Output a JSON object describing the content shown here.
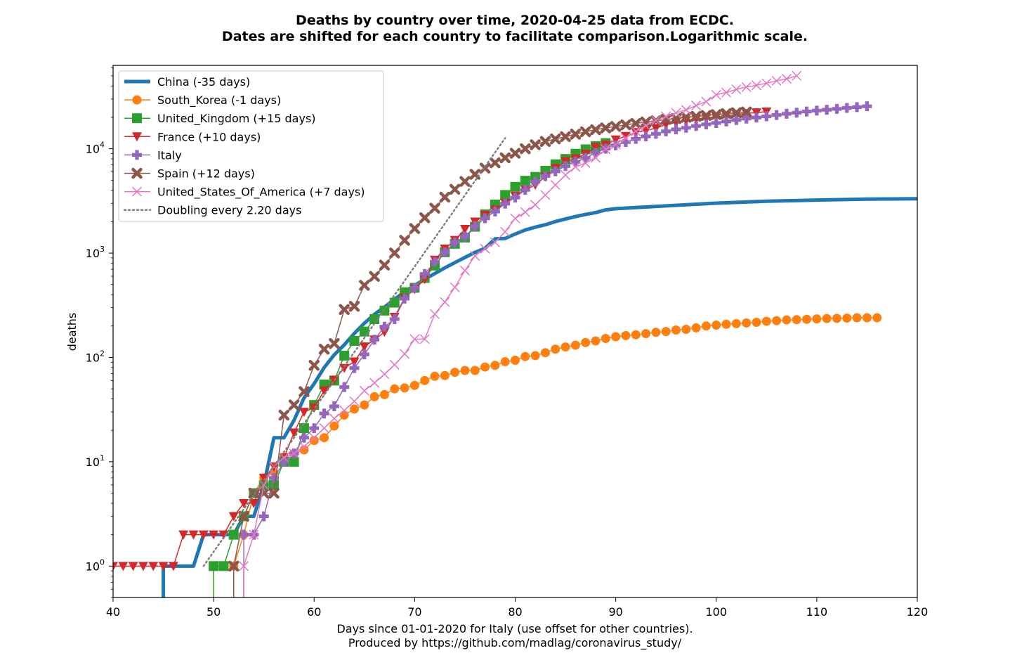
{
  "chart_data": {
    "type": "line",
    "title": [
      "Deaths by country over time, 2020-04-25 data from ECDC.",
      "Dates are shifted for each country to facilitate comparison.Logarithmic scale."
    ],
    "xlabel": [
      "Days since 01-01-2020 for Italy (use offset for other countries).",
      "Produced by https://github.com/madlag/coronavirus_study/"
    ],
    "ylabel": "deaths",
    "xlim": [
      40,
      120
    ],
    "ylim": [
      0.5,
      63000
    ],
    "yscale": "log",
    "x_ticks": [
      40,
      50,
      60,
      70,
      80,
      90,
      100,
      110,
      120
    ],
    "y_ticks": [
      {
        "value": 1,
        "base": "10",
        "exp": "0"
      },
      {
        "value": 10,
        "base": "10",
        "exp": "1"
      },
      {
        "value": 100,
        "base": "10",
        "exp": "2"
      },
      {
        "value": 1000,
        "base": "10",
        "exp": "3"
      },
      {
        "value": 10000,
        "base": "10",
        "exp": "4"
      }
    ],
    "legend_position": "top-left",
    "grid": false,
    "series": [
      {
        "name": "China (-35 days)",
        "color": "#1f77b4",
        "marker": "none",
        "line_width": 5,
        "x": [
          45,
          45,
          46,
          47,
          48,
          49,
          50,
          51,
          52,
          53,
          54,
          55,
          56,
          57,
          58,
          59,
          60,
          61,
          62,
          63,
          64,
          65,
          66,
          67,
          68,
          69,
          70,
          71,
          72,
          73,
          74,
          75,
          76,
          77,
          78,
          79,
          80,
          81,
          82,
          83,
          84,
          85,
          86,
          87,
          88,
          89,
          90,
          95,
          100,
          105,
          110,
          115,
          120
        ],
        "y": [
          0.5,
          1,
          1,
          1,
          1,
          2,
          2,
          2,
          2,
          3,
          3,
          6,
          17,
          17,
          25,
          41,
          56,
          80,
          106,
          132,
          170,
          213,
          259,
          304,
          361,
          425,
          490,
          562,
          636,
          722,
          811,
          908,
          1016,
          1113,
          1370,
          1381,
          1524,
          1666,
          1772,
          1870,
          2006,
          2121,
          2239,
          2348,
          2445,
          2595,
          2665,
          2835,
          3010,
          3140,
          3220,
          3290,
          3320
        ]
      },
      {
        "name": "South_Korea (-1 days)",
        "color": "#ff7f0e",
        "marker": "circle",
        "line_width": 1.5,
        "x": [
          52,
          52,
          53,
          54,
          55,
          56,
          57,
          58,
          59,
          60,
          61,
          62,
          63,
          64,
          65,
          66,
          67,
          68,
          69,
          70,
          71,
          72,
          73,
          74,
          75,
          76,
          77,
          78,
          79,
          80,
          81,
          82,
          83,
          84,
          85,
          86,
          87,
          88,
          89,
          90,
          91,
          92,
          93,
          94,
          95,
          96,
          97,
          98,
          99,
          100,
          101,
          102,
          103,
          104,
          105,
          106,
          107,
          108,
          109,
          110,
          111,
          112,
          113,
          114,
          115,
          116
        ],
        "y": [
          0.5,
          1,
          2,
          5,
          7,
          8,
          11,
          12,
          13,
          16,
          17,
          22,
          28,
          32,
          35,
          42,
          44,
          50,
          51,
          54,
          60,
          66,
          67,
          72,
          75,
          75,
          81,
          84,
          91,
          94,
          102,
          104,
          111,
          120,
          126,
          131,
          139,
          144,
          152,
          158,
          162,
          165,
          169,
          174,
          177,
          183,
          186,
          192,
          200,
          204,
          208,
          211,
          214,
          217,
          222,
          225,
          229,
          230,
          232,
          234,
          236,
          237,
          238,
          240,
          240,
          240
        ]
      },
      {
        "name": "United_Kingdom (+15 days)",
        "color": "#2ca02c",
        "marker": "square",
        "line_width": 1.5,
        "x": [
          50,
          50,
          51,
          52,
          53,
          54,
          55,
          56,
          57,
          58,
          59,
          60,
          61,
          62,
          63,
          64,
          65,
          66,
          67,
          68,
          69,
          70,
          71,
          72,
          73,
          74,
          75,
          76,
          77,
          78,
          79,
          80,
          81,
          82,
          83,
          84,
          85,
          86,
          87,
          88,
          89
        ],
        "y": [
          0.5,
          1,
          1,
          2,
          3,
          5,
          6,
          6,
          10,
          10,
          21,
          35,
          55,
          60,
          104,
          144,
          177,
          233,
          281,
          335,
          422,
          465,
          578,
          759,
          1019,
          1228,
          1408,
          1789,
          2352,
          2921,
          3605,
          4313,
          4934,
          5373,
          6159,
          7097,
          7978,
          8958,
          9875,
          10612,
          11329
        ]
      },
      {
        "name": "France (+10 days)",
        "color": "#d62728",
        "marker": "triangle-down",
        "line_width": 1.5,
        "x": [
          40,
          41,
          42,
          43,
          44,
          45,
          46,
          47,
          48,
          49,
          50,
          51,
          52,
          53,
          54,
          55,
          56,
          57,
          58,
          59,
          60,
          61,
          62,
          63,
          64,
          65,
          66,
          67,
          68,
          69,
          70,
          71,
          72,
          73,
          74,
          75,
          76,
          77,
          78,
          79,
          80,
          81,
          82,
          83,
          84,
          85,
          86,
          87,
          88,
          89,
          90,
          91,
          92,
          93,
          94,
          95,
          96,
          97,
          98,
          99,
          100,
          101,
          102,
          103,
          104,
          105
        ],
        "y": [
          1,
          1,
          1,
          1,
          1,
          1,
          1,
          2,
          2,
          2,
          2,
          2,
          3,
          4,
          4,
          7,
          9,
          11,
          19,
          30,
          33,
          48,
          61,
          79,
          91,
          127,
          148,
          175,
          244,
          372,
          450,
          562,
          860,
          1100,
          1331,
          1696,
          1995,
          2314,
          2606,
          3024,
          3523,
          4032,
          4503,
          5387,
          6507,
          7560,
          8078,
          8911,
          10328,
          10869,
          12210,
          13197,
          14393,
          14967,
          15712,
          17148,
          17901,
          18661,
          19323,
          19718,
          20265,
          20796,
          21340,
          21856,
          22245,
          22614
        ]
      },
      {
        "name": "Italy",
        "color": "#9467bd",
        "marker": "plus",
        "line_width": 1.5,
        "x": [
          53,
          53,
          54,
          55,
          56,
          57,
          58,
          59,
          60,
          61,
          62,
          63,
          64,
          65,
          66,
          67,
          68,
          69,
          70,
          71,
          72,
          73,
          74,
          75,
          76,
          77,
          78,
          79,
          80,
          81,
          82,
          83,
          84,
          85,
          86,
          87,
          88,
          89,
          90,
          91,
          92,
          93,
          94,
          95,
          96,
          97,
          98,
          99,
          100,
          101,
          102,
          103,
          104,
          105,
          106,
          107,
          108,
          109,
          110,
          111,
          112,
          113,
          114,
          115
        ],
        "y": [
          0.5,
          2,
          2,
          3,
          7,
          10,
          12,
          17,
          21,
          29,
          34,
          52,
          79,
          107,
          148,
          197,
          233,
          366,
          463,
          631,
          827,
          1016,
          1266,
          1441,
          1809,
          2158,
          2503,
          2978,
          3405,
          4032,
          4825,
          5476,
          6077,
          6820,
          7503,
          8165,
          9134,
          10023,
          10779,
          11591,
          12428,
          13155,
          13915,
          14681,
          15362,
          15887,
          16523,
          17127,
          17669,
          18279,
          18849,
          19468,
          19899,
          20465,
          21067,
          21645,
          22170,
          22745,
          23227,
          23660,
          24114,
          24648,
          25085,
          25549
        ]
      },
      {
        "name": "Spain (+12 days)",
        "color": "#8c564b",
        "marker": "x-thick",
        "line_width": 1.5,
        "x": [
          52,
          52,
          53,
          54,
          55,
          56,
          57,
          58,
          59,
          60,
          61,
          62,
          63,
          64,
          65,
          66,
          67,
          68,
          69,
          70,
          71,
          72,
          73,
          74,
          75,
          76,
          77,
          78,
          79,
          80,
          81,
          82,
          83,
          84,
          85,
          86,
          87,
          88,
          89,
          90,
          91,
          92,
          93,
          94,
          95,
          96,
          97,
          98,
          99,
          100,
          101,
          102,
          103
        ],
        "y": [
          0.5,
          1,
          3,
          5,
          5,
          5,
          28,
          35,
          47,
          84,
          120,
          136,
          288,
          309,
          491,
          598,
          767,
          1002,
          1326,
          1720,
          2182,
          2696,
          3434,
          4089,
          4858,
          5690,
          6528,
          7340,
          8189,
          9053,
          10003,
          10935,
          11744,
          12418,
          13055,
          13798,
          14555,
          15238,
          15843,
          16353,
          16972,
          17489,
          18056,
          18579,
          19130,
          19478,
          20043,
          20453,
          20852,
          21282,
          21717,
          22157,
          22524
        ]
      },
      {
        "name": "United_States_Of_America (+7 days)",
        "color": "#e377c2",
        "marker": "x-thin",
        "line_width": 1.5,
        "x": [
          53,
          53,
          54,
          55,
          56,
          57,
          58,
          59,
          60,
          61,
          62,
          63,
          64,
          65,
          66,
          67,
          68,
          69,
          70,
          71,
          72,
          73,
          74,
          75,
          76,
          77,
          78,
          79,
          80,
          81,
          82,
          83,
          84,
          85,
          86,
          87,
          88,
          89,
          90,
          91,
          92,
          93,
          94,
          95,
          96,
          97,
          98,
          99,
          100,
          101,
          102,
          103,
          104,
          105,
          106,
          107,
          108
        ],
        "y": [
          0.5,
          1,
          2,
          6,
          9,
          11,
          12,
          14,
          17,
          21,
          26,
          31,
          38,
          48,
          57,
          69,
          85,
          108,
          150,
          150,
          260,
          340,
          470,
          680,
          940,
          1100,
          1270,
          1600,
          2150,
          2470,
          2900,
          3600,
          4500,
          5600,
          6700,
          7300,
          8200,
          9900,
          11000,
          12700,
          14700,
          16600,
          18700,
          20400,
          22100,
          23600,
          26000,
          28300,
          32900,
          34600,
          37100,
          39000,
          40600,
          42500,
          44800,
          46800,
          50000
        ]
      },
      {
        "name": "Doubling every 2.20 days",
        "color": "#7f7f7f",
        "marker": "none",
        "line_width": 2.5,
        "dotted": true,
        "x": [
          49,
          79
        ],
        "y": [
          1,
          12652
        ]
      }
    ]
  }
}
